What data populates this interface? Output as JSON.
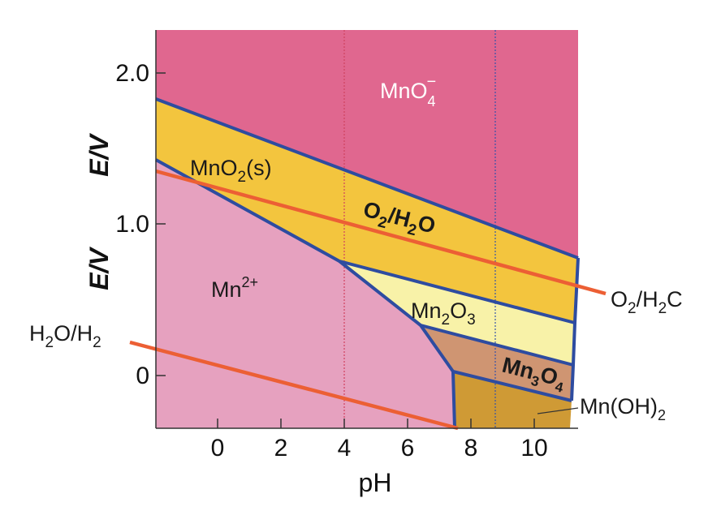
{
  "colors": {
    "permanganate": "#e0678f",
    "mno2": "#f3c53e",
    "mn2plus": "#e6a1bf",
    "mn2o3": "#f8f2a8",
    "mn3o4": "#cf9572",
    "mnoh2": "#cf9a35",
    "boundary": "#2e4ca0",
    "water_line": "#ec5f34",
    "ref_line_red": "#d0405e",
    "ref_line_blue": "#3552a8"
  },
  "labels": {
    "mno4": "MnO",
    "mno4_sub": "4",
    "mno4_sup": "−",
    "mno2_a": "MnO",
    "mno2_sub": "2",
    "mno2_b": "(s)",
    "o2h2o_center_a": "O",
    "o2h2o_center_sub1": "2",
    "o2h2o_center_b": "/H",
    "o2h2o_center_sub2": "2",
    "o2h2o_center_c": "O",
    "o2h2o_right_a": "O",
    "o2h2o_right_sub1": "2",
    "o2h2o_right_b": "/H",
    "o2h2o_right_sub2": "2",
    "o2h2o_right_c": "C",
    "mn2plus": "Mn",
    "mn2plus_sup": "2+",
    "mn2o3_a": "Mn",
    "mn2o3_sub1": "2",
    "mn2o3_b": "O",
    "mn2o3_sub2": "3",
    "mn3o4_a": "Mn",
    "mn3o4_sub1": "3",
    "mn3o4_b": "O",
    "mn3o4_sub2": "4",
    "mnoh2_a": "Mn(OH)",
    "mnoh2_sub": "2",
    "h2oh2_a": "H",
    "h2oh2_sub1": "2",
    "h2oh2_b": "O/H",
    "h2oh2_sub2": "2"
  },
  "axes": {
    "x_title": "pH",
    "y_title_upper": "E/V",
    "y_title_lower": "E/V",
    "x_ticks": [
      {
        "value": 0,
        "label": "0"
      },
      {
        "value": 2,
        "label": "2"
      },
      {
        "value": 4,
        "label": "4"
      },
      {
        "value": 6,
        "label": "6"
      },
      {
        "value": 8,
        "label": "8"
      },
      {
        "value": 10,
        "label": "10"
      }
    ],
    "y_ticks": [
      {
        "value": 2.0,
        "label": "2.0"
      },
      {
        "value": 1.0,
        "label": "1.0"
      },
      {
        "value": 0,
        "label": "0"
      }
    ]
  }
}
